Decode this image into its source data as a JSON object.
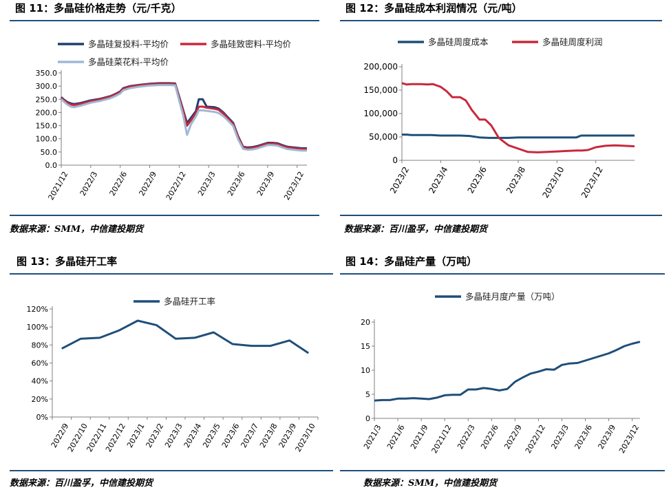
{
  "panels": [
    {
      "title": "图 11：多晶硅价格走势（元/千克）",
      "source": "数据来源：SMM，中信建投期货",
      "chart_data": {
        "type": "line",
        "legend_position": "top",
        "ylim": [
          0,
          350
        ],
        "yticks": [
          "0.0",
          "50.0",
          "100.0",
          "150.0",
          "200.0",
          "250.0",
          "300.0",
          "350.0"
        ],
        "x_domain": [
          0,
          25
        ],
        "xticks": [
          {
            "x": 0,
            "label": "2021/12"
          },
          {
            "x": 3,
            "label": "2022/3"
          },
          {
            "x": 6,
            "label": "2022/6"
          },
          {
            "x": 9,
            "label": "2022/9"
          },
          {
            "x": 12,
            "label": "2022/12"
          },
          {
            "x": 15,
            "label": "2023/3"
          },
          {
            "x": 18,
            "label": "2023/6"
          },
          {
            "x": 21,
            "label": "2023/9"
          },
          {
            "x": 24,
            "label": "2023/12"
          }
        ],
        "series": [
          {
            "name": "多晶硅复投料-平均价",
            "color": "#1f3f6e",
            "x": [
              0,
              0.3,
              0.6,
              1.0,
              1.3,
              2.0,
              3.0,
              4.0,
              5.0,
              5.5,
              6.0,
              6.3,
              7.0,
              8.0,
              9.0,
              10.0,
              11.0,
              11.6,
              12.0,
              12.4,
              12.8,
              13.2,
              13.7,
              14.0,
              14.4,
              14.8,
              15.2,
              15.6,
              16.0,
              16.5,
              17.0,
              17.5,
              18.0,
              18.5,
              19.0,
              19.5,
              20.0,
              20.5,
              21.0,
              21.5,
              22.0,
              22.5,
              23.0,
              23.5,
              24.0,
              24.5,
              25.0
            ],
            "y": [
              258,
              248,
              240,
              234,
              232,
              236,
              246,
              252,
              262,
              270,
              280,
              292,
              300,
              305,
              309,
              311,
              311,
              310,
              260,
              210,
              160,
              180,
              205,
              250,
              250,
              222,
              221,
              220,
              215,
              200,
              180,
              160,
              110,
              70,
              67,
              69,
              73,
              79,
              85,
              85,
              83,
              76,
              70,
              68,
              66,
              64,
              64
            ]
          },
          {
            "name": "多晶硅致密料-平均价",
            "color": "#c8283c",
            "x": [
              0,
              0.3,
              0.6,
              1.0,
              1.3,
              2.0,
              3.0,
              4.0,
              5.0,
              5.5,
              6.0,
              6.3,
              7.0,
              8.0,
              9.0,
              10.0,
              11.0,
              11.6,
              12.0,
              12.4,
              12.8,
              13.2,
              13.7,
              14.0,
              14.4,
              14.8,
              15.2,
              15.6,
              16.0,
              16.5,
              17.0,
              17.5,
              18.0,
              18.5,
              19.0,
              19.5,
              20.0,
              20.5,
              21.0,
              21.5,
              22.0,
              22.5,
              23.0,
              23.5,
              24.0,
              24.5,
              25.0
            ],
            "y": [
              255,
              245,
              237,
              230,
              228,
              233,
              243,
              250,
              260,
              268,
              278,
              290,
              298,
              303,
              307,
              309,
              309,
              308,
              255,
              205,
              150,
              170,
              198,
              222,
              222,
              218,
              216,
              214,
              210,
              196,
              176,
              156,
              106,
              68,
              64,
              66,
              70,
              76,
              82,
              82,
              80,
              73,
              67,
              65,
              63,
              61,
              61
            ]
          },
          {
            "name": "多晶硅菜花料-平均价",
            "color": "#9fb9d4",
            "x": [
              0,
              0.3,
              0.6,
              1.0,
              1.3,
              2.0,
              3.0,
              4.0,
              5.0,
              5.5,
              6.0,
              6.3,
              7.0,
              8.0,
              9.0,
              10.0,
              11.0,
              11.6,
              12.0,
              12.4,
              12.8,
              13.2,
              13.7,
              14.0,
              14.4,
              14.8,
              15.2,
              15.6,
              16.0,
              16.5,
              17.0,
              17.5,
              18.0,
              18.5,
              19.0,
              19.5,
              20.0,
              20.5,
              21.0,
              21.5,
              22.0,
              22.5,
              23.0,
              23.5,
              24.0,
              24.5,
              25.0
            ],
            "y": [
              250,
              240,
              230,
              222,
              220,
              226,
              237,
              244,
              254,
              262,
              272,
              284,
              292,
              298,
              302,
              304,
              304,
              303,
              245,
              190,
              115,
              155,
              185,
              208,
              208,
              206,
              204,
              202,
              198,
              186,
              168,
              148,
              98,
              62,
              58,
              60,
              64,
              70,
              76,
              76,
              74,
              67,
              61,
              59,
              57,
              55,
              55
            ]
          }
        ]
      }
    },
    {
      "title": "图 12：多晶硅成本利润情况（元/吨）",
      "source": "数据来源：百川盈孚，中信建投期货",
      "chart_data": {
        "type": "line",
        "legend_position": "top",
        "ylim": [
          0,
          200000
        ],
        "yticks": [
          "0",
          "50,000",
          "100,000",
          "150,000",
          "200,000"
        ],
        "x_domain": [
          0,
          12
        ],
        "xticks": [
          {
            "x": 0,
            "label": "2023/2"
          },
          {
            "x": 2,
            "label": "2023/4"
          },
          {
            "x": 4,
            "label": "2023/6"
          },
          {
            "x": 6,
            "label": "2023/8"
          },
          {
            "x": 8,
            "label": "2023/10"
          },
          {
            "x": 10,
            "label": "2023/12"
          }
        ],
        "series": [
          {
            "name": "多晶硅周度成本",
            "color": "#1f4e79",
            "x": [
              0,
              0.25,
              0.5,
              1,
              1.5,
              2,
              2.5,
              3,
              3.5,
              4,
              4.5,
              5,
              5.5,
              6,
              6.5,
              7,
              7.5,
              8,
              8.5,
              9,
              9.25,
              9.5,
              10,
              10.5,
              11,
              11.5,
              12
            ],
            "y": [
              55000,
              55000,
              54000,
              54000,
              54000,
              53000,
              53000,
              53000,
              52000,
              49000,
              48000,
              48000,
              48000,
              49000,
              49000,
              49000,
              49000,
              49000,
              49000,
              49000,
              53000,
              53000,
              53000,
              53000,
              53000,
              53000,
              53000
            ]
          },
          {
            "name": "多晶硅周度利润",
            "color": "#c8283c",
            "x": [
              0,
              0.25,
              0.5,
              1,
              1.3,
              1.6,
              2,
              2.3,
              2.6,
              3,
              3.3,
              3.6,
              4,
              4.3,
              4.6,
              5,
              5.5,
              6,
              6.5,
              7,
              7.5,
              8,
              8.5,
              9,
              9.3,
              9.6,
              10,
              10.5,
              11,
              11.5,
              12
            ],
            "y": [
              165000,
              162000,
              163000,
              163000,
              162000,
              163000,
              157000,
              148000,
              135000,
              135000,
              128000,
              108000,
              87000,
              87000,
              75000,
              48000,
              32000,
              25000,
              18000,
              17000,
              18000,
              19000,
              20000,
              21000,
              21000,
              22000,
              28000,
              31000,
              32000,
              31000,
              30000
            ]
          }
        ]
      }
    },
    {
      "title": "图 13：多晶硅开工率",
      "source": "数据来源：百川盈孚，中信建投期货",
      "chart_data": {
        "type": "line",
        "legend_position": "top",
        "ylim": [
          0,
          120
        ],
        "yticks": [
          "0%",
          "20%",
          "40%",
          "60%",
          "80%",
          "100%",
          "120%"
        ],
        "categories": [
          "2022/9",
          "2022/10",
          "2022/11",
          "2022/12",
          "2023/1",
          "2023/2",
          "2023/3",
          "2023/4",
          "2023/5",
          "2023/6",
          "2023/7",
          "2023/8",
          "2023/9",
          "2023/10"
        ],
        "series": [
          {
            "name": "多晶硅开工率",
            "color": "#1f4e79",
            "values": [
              76,
              87,
              88,
              96,
              107,
              102,
              87,
              88,
              94,
              81,
              79,
              79,
              85,
              71
            ]
          }
        ]
      }
    },
    {
      "title": "图 14：多晶硅产量（万吨）",
      "source": "数据来源：SMM，中信建投期货",
      "chart_data": {
        "type": "line",
        "legend_position": "top",
        "ylim": [
          0,
          20
        ],
        "yticks": [
          "0",
          "5",
          "10",
          "15",
          "20"
        ],
        "x_domain": [
          0,
          34
        ],
        "xticks": [
          {
            "x": 0,
            "label": "2021/3"
          },
          {
            "x": 3,
            "label": "2021/6"
          },
          {
            "x": 6,
            "label": "2021/9"
          },
          {
            "x": 9,
            "label": "2021/12"
          },
          {
            "x": 12,
            "label": "2022/3"
          },
          {
            "x": 15,
            "label": "2022/6"
          },
          {
            "x": 18,
            "label": "2022/9"
          },
          {
            "x": 21,
            "label": "2022/12"
          },
          {
            "x": 24,
            "label": "2023/3"
          },
          {
            "x": 27,
            "label": "2023/6"
          },
          {
            "x": 30,
            "label": "2023/9"
          },
          {
            "x": 33,
            "label": "2023/12"
          }
        ],
        "series": [
          {
            "name": "多晶硅月度产量（万吨）",
            "color": "#1f4e79",
            "x": [
              0,
              1,
              2,
              3,
              4,
              5,
              6,
              7,
              8,
              9,
              10,
              11,
              12,
              13,
              14,
              15,
              16,
              17,
              18,
              19,
              20,
              21,
              22,
              23,
              24,
              25,
              26,
              27,
              28,
              29,
              30,
              31,
              32,
              33,
              34
            ],
            "y": [
              3.7,
              3.8,
              3.8,
              4.1,
              4.1,
              4.2,
              4.1,
              4.0,
              4.3,
              4.8,
              4.9,
              4.9,
              6.0,
              6.0,
              6.3,
              6.1,
              5.8,
              6.1,
              7.6,
              8.5,
              9.3,
              9.7,
              10.2,
              10.1,
              11.1,
              11.4,
              11.5,
              12.0,
              12.5,
              13.0,
              13.5,
              14.2,
              15.0,
              15.5,
              15.9
            ]
          }
        ]
      }
    }
  ]
}
